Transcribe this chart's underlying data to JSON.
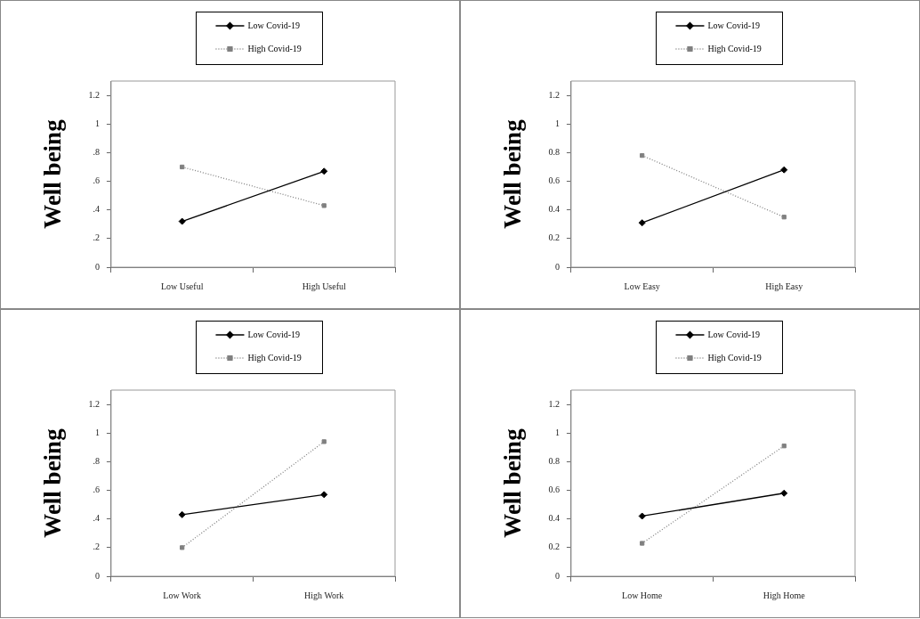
{
  "chart_data": [
    {
      "type": "line",
      "categories": [
        "Low Useful",
        "High Useful"
      ],
      "ylabel": "Well being",
      "legend": "top",
      "ylim": [
        0,
        1.3
      ],
      "yticks": [
        0,
        {
          "value": 0.2,
          "label": ".2"
        },
        {
          "value": 0.4,
          "label": ".4"
        },
        {
          "value": 0.6,
          "label": ".6"
        },
        {
          "value": 0.8,
          "label": ".8"
        },
        1,
        1.2
      ],
      "series": [
        {
          "name": "Low Covid-19",
          "color": "#000000",
          "values": [
            0.32,
            0.67
          ],
          "marker": "diamond",
          "line_style": "solid"
        },
        {
          "name": "High Covid-19",
          "color": "#808080",
          "values": [
            0.7,
            0.43
          ],
          "marker": "square",
          "line_style": "dotted"
        }
      ]
    },
    {
      "type": "line",
      "categories": [
        "Low Easy",
        "High Easy"
      ],
      "ylabel": "Well being",
      "legend": "top",
      "ylim": [
        0,
        1.3
      ],
      "yticks": [
        0,
        0.2,
        0.4,
        0.6,
        0.8,
        1,
        1.2
      ],
      "series": [
        {
          "name": "Low Covid-19",
          "color": "#000000",
          "values": [
            0.31,
            0.68
          ],
          "marker": "diamond",
          "line_style": "solid"
        },
        {
          "name": "High Covid-19",
          "color": "#808080",
          "values": [
            0.78,
            0.35
          ],
          "marker": "square",
          "line_style": "dotted"
        }
      ]
    },
    {
      "type": "line",
      "categories": [
        "Low Work",
        "High Work"
      ],
      "ylabel": "Well being",
      "legend": "top",
      "ylim": [
        0,
        1.3
      ],
      "yticks": [
        0,
        {
          "value": 0.2,
          "label": ".2"
        },
        {
          "value": 0.4,
          "label": ".4"
        },
        {
          "value": 0.6,
          "label": ".6"
        },
        {
          "value": 0.8,
          "label": ".8"
        },
        1,
        1.2
      ],
      "series": [
        {
          "name": "Low Covid-19",
          "color": "#000000",
          "values": [
            0.43,
            0.57
          ],
          "marker": "diamond",
          "line_style": "solid"
        },
        {
          "name": "High Covid-19",
          "color": "#808080",
          "values": [
            0.2,
            0.94
          ],
          "marker": "square",
          "line_style": "dotted"
        }
      ]
    },
    {
      "type": "line",
      "categories": [
        "Low Home",
        "High Home"
      ],
      "ylabel": "Well being",
      "legend": "top",
      "ylim": [
        0,
        1.3
      ],
      "yticks": [
        0,
        0.2,
        0.4,
        0.6,
        0.8,
        1,
        1.2
      ],
      "series": [
        {
          "name": "Low Covid-19",
          "color": "#000000",
          "values": [
            0.42,
            0.58
          ],
          "marker": "diamond",
          "line_style": "solid"
        },
        {
          "name": "High Covid-19",
          "color": "#808080",
          "values": [
            0.23,
            0.91
          ],
          "marker": "square",
          "line_style": "dotted"
        }
      ]
    }
  ]
}
